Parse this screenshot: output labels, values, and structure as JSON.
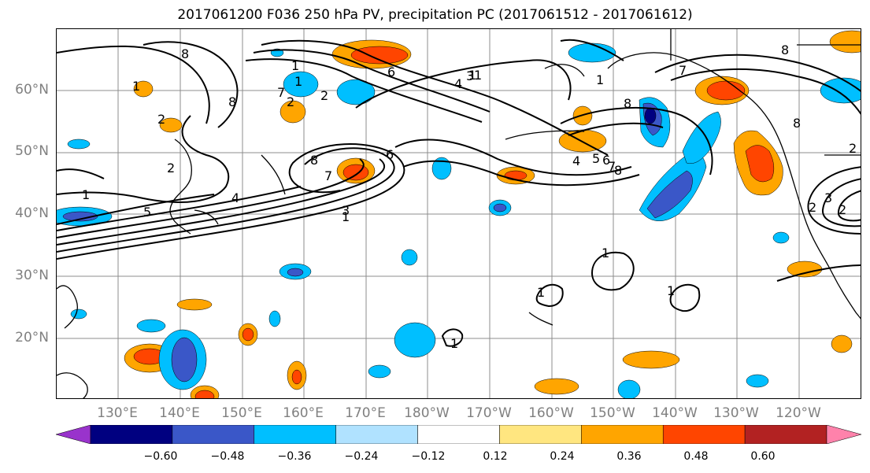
{
  "title": "2017061200 F036 250 hPa PV, precipitation PC (2017061512 - 2017061612)",
  "lat_labels": [
    "60°N",
    "50°N",
    "40°N",
    "30°N",
    "20°N"
  ],
  "lon_labels": [
    "130°E",
    "140°E",
    "150°E",
    "160°E",
    "170°E",
    "180°W",
    "170°W",
    "160°W",
    "150°W",
    "140°W",
    "130°W",
    "120°W"
  ],
  "colorbar": {
    "labels": [
      "−0.60",
      "−0.48",
      "−0.36",
      "−0.24",
      "−0.12",
      "0.12",
      "0.24",
      "0.36",
      "0.48",
      "0.60"
    ],
    "colors": [
      "#9933cc",
      "#000080",
      "#3a57c8",
      "#00bfff",
      "#b0e2ff",
      "#ffffff",
      "#ffe680",
      "#ffa500",
      "#ff4500",
      "#b22222",
      "#ff82ab"
    ]
  },
  "contour_labels": [
    "8",
    "1",
    "6",
    "2",
    "1",
    "1",
    "2",
    "8",
    "7",
    "3",
    "8",
    "2",
    "1",
    "8",
    "6",
    "7",
    "1",
    "2",
    "1",
    "5",
    "4",
    "3",
    "1",
    "7",
    "8",
    "8",
    "4",
    "4",
    "5",
    "6",
    "7",
    "8",
    "2",
    "1",
    "3",
    "2",
    "2",
    "1",
    "1",
    "1",
    "1"
  ]
}
